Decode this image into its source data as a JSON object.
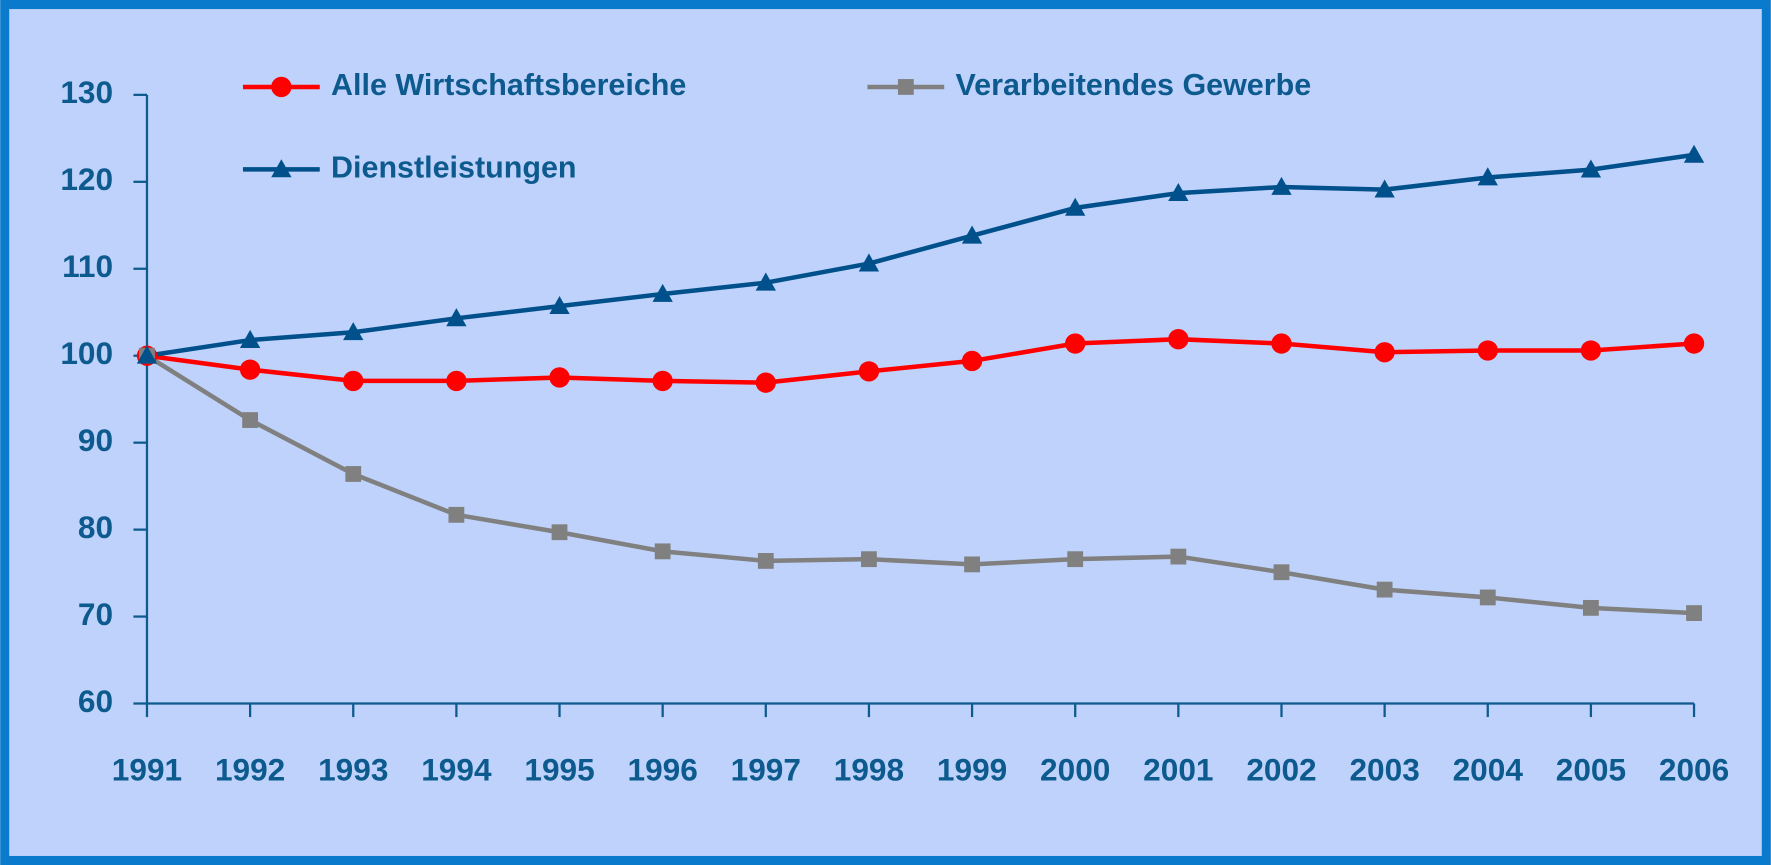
{
  "chart_data": {
    "type": "line",
    "x": [
      1991,
      1992,
      1993,
      1994,
      1995,
      1996,
      1997,
      1998,
      1999,
      2000,
      2001,
      2002,
      2003,
      2004,
      2005,
      2006
    ],
    "xlim": [
      1991,
      2006
    ],
    "xticks": [
      1991,
      1992,
      1993,
      1994,
      1995,
      1996,
      1997,
      1998,
      1999,
      2000,
      2001,
      2002,
      2003,
      2004,
      2005,
      2006
    ],
    "ylim": [
      60,
      130
    ],
    "yticks": [
      60,
      70,
      80,
      90,
      100,
      110,
      120,
      130
    ],
    "series": [
      {
        "name": "Alle Wirtschaftsbereiche",
        "color": "#ff0000",
        "marker": "circle",
        "values": [
          100,
          98.4,
          97.1,
          97.1,
          97.5,
          97.1,
          96.9,
          98.2,
          99.4,
          101.4,
          101.9,
          101.4,
          100.4,
          100.6,
          100.6,
          101.4
        ]
      },
      {
        "name": "Verarbeitendes Gewerbe",
        "color": "#808080",
        "marker": "square",
        "values": [
          100,
          92.6,
          86.4,
          81.7,
          79.7,
          77.5,
          76.4,
          76.6,
          76.0,
          76.6,
          76.9,
          75.1,
          73.1,
          72.2,
          71.0,
          70.4
        ]
      },
      {
        "name": "Dienstleistungen",
        "color": "#00508c",
        "marker": "triangle",
        "values": [
          100,
          101.8,
          102.7,
          104.3,
          105.7,
          107.1,
          108.4,
          110.6,
          113.8,
          117.0,
          118.7,
          119.4,
          119.1,
          120.5,
          121.4,
          123.1
        ]
      }
    ]
  }
}
